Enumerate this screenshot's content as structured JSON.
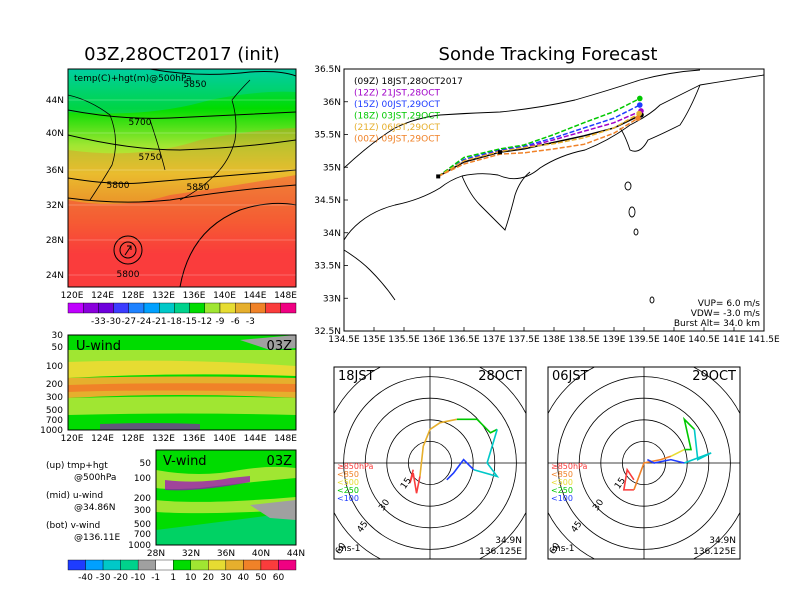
{
  "left_title": "03Z,28OCT2017 (init)",
  "right_title": "Sonde Tracking Forecast",
  "map_left": {
    "label": "temp(C)+hgt(m)@500hPa",
    "contour_labels": [
      "5850",
      "5700",
      "5750",
      "5800",
      "5850",
      "5800"
    ],
    "lat_ticks": [
      "44N",
      "40N",
      "36N",
      "32N",
      "28N",
      "24N"
    ],
    "lon_ticks": [
      "120E",
      "124E",
      "128E",
      "132E",
      "136E",
      "140E",
      "144E",
      "148E"
    ],
    "colorbar": [
      "-33",
      "-30",
      "-27",
      "-24",
      "-21",
      "-18",
      "-15",
      "-12",
      "-9",
      "-6",
      "-3"
    ],
    "colorbar_colors": [
      "#c000ff",
      "#8a00dc",
      "#6e00dc",
      "#3c3cff",
      "#1e82ff",
      "#00a0ff",
      "#00c8c8",
      "#00d28c",
      "#00dc00",
      "#a0e632",
      "#e6dc32",
      "#e6af2d",
      "#f08228",
      "#fa3c3c",
      "#f00082"
    ]
  },
  "u_panel": {
    "label": "U-wind",
    "time": "03Z",
    "p_ticks": [
      "30",
      "50",
      "100",
      "200",
      "300",
      "500",
      "700",
      "1000"
    ],
    "lon_ticks": [
      "120E",
      "124E",
      "128E",
      "132E",
      "136E",
      "140E",
      "144E",
      "148E"
    ]
  },
  "v_panel": {
    "label": "V-wind",
    "time": "03Z",
    "p_ticks": [
      "50",
      "100",
      "200",
      "300",
      "500",
      "700",
      "1000"
    ],
    "lat_ticks": [
      "28N",
      "32N",
      "36N",
      "40N",
      "44N"
    ],
    "colorbar": [
      "-40",
      "-30",
      "-20",
      "-10",
      "-1",
      "1",
      "10",
      "20",
      "30",
      "40",
      "50",
      "60"
    ],
    "colorbar_colors": [
      "#1e3cff",
      "#00a0ff",
      "#00c8c8",
      "#00d28c",
      "#a0a0a0",
      "#ffffff",
      "#00dc00",
      "#a0e632",
      "#e6dc32",
      "#e6af2d",
      "#f08228",
      "#fa3c3c",
      "#f00082"
    ]
  },
  "legend_notes": [
    {
      "line1": "(up) tmp+hgt",
      "line2": "@500hPa"
    },
    {
      "line1": "(mid) u-wind",
      "line2": "@34.86N"
    },
    {
      "line1": "(bot) v-wind",
      "line2": "@136.11E"
    }
  ],
  "track_map": {
    "lat_ticks": [
      "36.5N",
      "36N",
      "35.5N",
      "35N",
      "34.5N",
      "34N",
      "33.5N",
      "33N",
      "32.5N"
    ],
    "lon_ticks": [
      "134.5E",
      "135E",
      "135.5E",
      "136E",
      "136.5E",
      "137E",
      "137.5E",
      "138E",
      "138.5E",
      "139E",
      "139.5E",
      "140E",
      "140.5E",
      "141E",
      "141.5E"
    ],
    "launch_legend": [
      {
        "label": "(09Z)  18JST,28OCT2017",
        "color": "#000000"
      },
      {
        "label": "(12Z)  21JST,28OCT",
        "color": "#a000c8"
      },
      {
        "label": "(15Z)  00JST,29OCT",
        "color": "#1e3cff"
      },
      {
        "label": "(18Z)  03JST,29OCT",
        "color": "#00c800"
      },
      {
        "label": "(21Z)  06JST,29OCT",
        "color": "#e6af2d"
      },
      {
        "label": "(00Z)  09JST,29OCT",
        "color": "#f08228"
      }
    ],
    "params": [
      "VUP=  6.0  m/s",
      "VDW= -3.0  m/s",
      "Burst Alt=  34.0  km"
    ]
  },
  "chart_data": {
    "type": "line",
    "xlabel": "",
    "ylabel": "",
    "xlim": [
      134.5,
      141.5
    ],
    "ylim": [
      32.5,
      36.5
    ],
    "series": [
      {
        "name": "(09Z)  18JST,28OCT2017",
        "color": "#000000",
        "lon": [
          136.07,
          136.5,
          137.1,
          137.5,
          138.0,
          138.5,
          139.0,
          139.45
        ],
        "lat": [
          34.86,
          35.08,
          35.23,
          35.28,
          35.38,
          35.48,
          35.6,
          35.8
        ]
      },
      {
        "name": "(12Z)  21JST,28OCT",
        "color": "#a000c8",
        "lon": [
          136.07,
          136.5,
          137.1,
          137.5,
          138.0,
          138.5,
          139.0,
          139.45
        ],
        "lat": [
          34.86,
          35.1,
          35.25,
          35.3,
          35.42,
          35.55,
          35.68,
          35.86
        ]
      },
      {
        "name": "(15Z)  00JST,29OCT",
        "color": "#1e3cff",
        "lon": [
          136.07,
          136.5,
          137.1,
          137.5,
          138.0,
          138.5,
          139.0,
          139.43
        ],
        "lat": [
          34.86,
          35.12,
          35.27,
          35.32,
          35.45,
          35.6,
          35.75,
          35.95
        ]
      },
      {
        "name": "(18Z)  03JST,29OCT",
        "color": "#00c800",
        "lon": [
          136.07,
          136.5,
          137.1,
          137.5,
          138.0,
          138.5,
          139.0,
          139.43
        ],
        "lat": [
          34.86,
          35.15,
          35.28,
          35.34,
          35.5,
          35.68,
          35.85,
          36.05
        ]
      },
      {
        "name": "(21Z)  06JST,29OCT",
        "color": "#e6af2d",
        "lon": [
          136.07,
          136.5,
          137.1,
          137.5,
          138.0,
          138.5,
          139.0,
          139.42
        ],
        "lat": [
          34.86,
          35.1,
          35.24,
          35.3,
          35.36,
          35.45,
          35.6,
          35.82
        ]
      },
      {
        "name": "(00Z)  09JST,29OCT",
        "color": "#f08228",
        "lon": [
          136.07,
          136.5,
          137.1,
          137.5,
          138.0,
          138.5,
          139.0,
          139.4
        ],
        "lat": [
          34.86,
          35.05,
          35.2,
          35.22,
          35.28,
          35.35,
          35.52,
          35.75
        ]
      }
    ]
  },
  "hodo_left": {
    "time": "18JST",
    "date": "28OCT",
    "ring_labels": [
      "15",
      "30",
      "45",
      "60"
    ],
    "loc": "34.9N",
    "loc2": "136.125E",
    "unit": "ms-1",
    "levels": [
      {
        "label": "≥850hPa",
        "color": "#fa3c3c"
      },
      {
        "label": "<850",
        "color": "#f08228"
      },
      {
        "label": "<500",
        "color": "#e6dc32"
      },
      {
        "label": "<250",
        "color": "#00c800"
      },
      {
        "label": "<100",
        "color": "#1e3cff"
      }
    ],
    "hodograph": [
      {
        "color": "#fa3c3c",
        "u": [
          -5,
          -6,
          -5,
          -4,
          -3
        ],
        "v": [
          -2,
          -6,
          -3,
          -9,
          -4
        ]
      },
      {
        "color": "#e6af2d",
        "u": [
          -3,
          -2,
          0,
          3,
          8
        ],
        "v": [
          -4,
          5,
          10,
          12,
          13
        ]
      },
      {
        "color": "#00c800",
        "u": [
          8,
          14,
          18,
          20
        ],
        "v": [
          13,
          13,
          9,
          10
        ]
      },
      {
        "color": "#00c8c8",
        "u": [
          20,
          17,
          20,
          13
        ],
        "v": [
          10,
          0,
          -4,
          -2
        ]
      },
      {
        "color": "#1e3cff",
        "u": [
          13,
          10,
          7,
          5
        ],
        "v": [
          -2,
          1,
          -3,
          -5
        ]
      }
    ]
  },
  "hodo_right": {
    "time": "06JST",
    "date": "29OCT",
    "ring_labels": [
      "15",
      "30",
      "45",
      "60"
    ],
    "loc": "34.9N",
    "loc2": "136.125E",
    "unit": "ms-1",
    "levels": [
      {
        "label": "≥850hPa",
        "color": "#fa3c3c"
      },
      {
        "label": "<850",
        "color": "#f08228"
      },
      {
        "label": "<500",
        "color": "#e6dc32"
      },
      {
        "label": "<250",
        "color": "#00c800"
      },
      {
        "label": "<100",
        "color": "#1e3cff"
      }
    ],
    "hodograph": [
      {
        "color": "#fa3c3c",
        "u": [
          -3,
          -5,
          -6,
          -3
        ],
        "v": [
          -5,
          -2,
          -8,
          -8
        ]
      },
      {
        "color": "#f08228",
        "u": [
          -3,
          0,
          5,
          8
        ],
        "v": [
          -8,
          0,
          1,
          2
        ]
      },
      {
        "color": "#e6dc32",
        "u": [
          8,
          12
        ],
        "v": [
          2,
          4
        ]
      },
      {
        "color": "#00c800",
        "u": [
          12,
          14,
          12,
          15
        ],
        "v": [
          4,
          4,
          13,
          10
        ]
      },
      {
        "color": "#00c8c8",
        "u": [
          15,
          16,
          20,
          12
        ],
        "v": [
          10,
          1,
          3,
          0
        ]
      },
      {
        "color": "#1e3cff",
        "u": [
          12,
          8,
          3,
          1
        ],
        "v": [
          0,
          1,
          0,
          1
        ]
      }
    ]
  }
}
